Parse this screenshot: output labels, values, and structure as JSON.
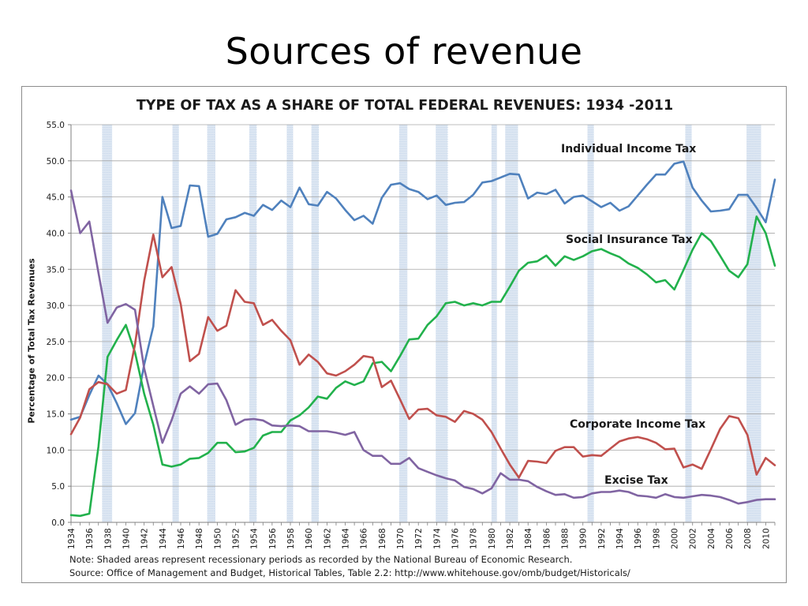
{
  "slide": {
    "title": "Sources of revenue"
  },
  "chart_notes": {
    "note": "Note:  Shaded areas represent recessionary periods as recorded by the National Bureau of Economic Research.",
    "source": "Source: Office of Management and Budget, Historical Tables, Table 2.2:  http://www.whitehouse.gov/omb/budget/Historicals/"
  },
  "chart_data": {
    "type": "line",
    "title": "TYPE OF TAX AS A SHARE OF TOTAL FEDERAL REVENUES: 1934 -2011",
    "xlabel": "",
    "ylabel": "Percentage of Total Tax Revenues",
    "ylim": [
      0,
      55
    ],
    "yticks": [
      "0.0",
      "5.0",
      "10.0",
      "15.0",
      "20.0",
      "25.0",
      "30.0",
      "35.0",
      "40.0",
      "45.0",
      "50.0",
      "55.0"
    ],
    "xlim": [
      1934,
      2011
    ],
    "xticks": [
      "1934",
      "1936",
      "1938",
      "1940",
      "1942",
      "1944",
      "1946",
      "1948",
      "1950",
      "1952",
      "1954",
      "1956",
      "1958",
      "1960",
      "1962",
      "1964",
      "1966",
      "1968",
      "1970",
      "1972",
      "1974",
      "1976",
      "1978",
      "1980",
      "1982",
      "1984",
      "1986",
      "1988",
      "1990",
      "1992",
      "1994",
      "1996",
      "1998",
      "2000",
      "2002",
      "2004",
      "2006",
      "2008",
      "2010"
    ],
    "grid": true,
    "recessions": [
      [
        1937.4,
        1938.5
      ],
      [
        1945.1,
        1945.8
      ],
      [
        1948.9,
        1949.8
      ],
      [
        1953.5,
        1954.3
      ],
      [
        1957.6,
        1958.3
      ],
      [
        1960.3,
        1961.1
      ],
      [
        1969.9,
        1970.8
      ],
      [
        1973.9,
        1975.2
      ],
      [
        1980.0,
        1980.6
      ],
      [
        1981.5,
        1982.9
      ],
      [
        1990.5,
        1991.2
      ],
      [
        2001.2,
        2001.9
      ],
      [
        2007.9,
        2009.5
      ]
    ],
    "series": [
      {
        "name": "Individual Income Tax",
        "color": "#4f81bd",
        "values": [
          14.2,
          14.6,
          17.6,
          20.3,
          19.1,
          16.5,
          13.6,
          15.1,
          21.8,
          27.1,
          45.0,
          40.7,
          41.0,
          46.6,
          46.5,
          39.5,
          39.9,
          41.9,
          42.2,
          42.8,
          42.4,
          43.9,
          43.2,
          44.5,
          43.6,
          46.3,
          44.0,
          43.8,
          45.7,
          44.8,
          43.2,
          41.8,
          42.4,
          41.3,
          44.9,
          46.7,
          46.9,
          46.1,
          45.7,
          44.7,
          45.2,
          43.9,
          44.2,
          44.3,
          45.3,
          47.0,
          47.2,
          47.7,
          48.2,
          48.1,
          44.8,
          45.6,
          45.4,
          46.0,
          44.1,
          45.0,
          45.2,
          44.4,
          43.6,
          44.2,
          43.1,
          43.7,
          45.2,
          46.7,
          48.1,
          48.1,
          49.6,
          49.9,
          46.3,
          44.5,
          43.0,
          43.1,
          43.3,
          45.3,
          45.3,
          43.5,
          41.5,
          47.4
        ]
      },
      {
        "name": "Social Insurance Tax",
        "color": "#22b14c",
        "values": [
          1.0,
          0.9,
          1.2,
          10.5,
          22.9,
          25.2,
          27.3,
          23.5,
          17.8,
          13.5,
          8.0,
          7.7,
          8.0,
          8.8,
          8.9,
          9.6,
          11.0,
          11.0,
          9.7,
          9.8,
          10.3,
          12.0,
          12.5,
          12.5,
          14.1,
          14.8,
          15.9,
          17.4,
          17.1,
          18.6,
          19.5,
          19.0,
          19.5,
          22.0,
          22.2,
          20.9,
          23.0,
          25.3,
          25.4,
          27.3,
          28.5,
          30.3,
          30.5,
          30.0,
          30.3,
          30.0,
          30.5,
          30.5,
          32.6,
          34.8,
          35.9,
          36.1,
          36.9,
          35.5,
          36.8,
          36.3,
          36.8,
          37.5,
          37.8,
          37.2,
          36.7,
          35.8,
          35.2,
          34.3,
          33.2,
          33.5,
          32.2,
          34.9,
          37.7,
          40.0,
          38.9,
          36.9,
          34.8,
          33.9,
          35.7,
          42.3,
          40.0,
          35.5
        ]
      },
      {
        "name": "Corporate Income Tax",
        "color": "#c0504d",
        "values": [
          12.2,
          14.5,
          18.4,
          19.4,
          19.1,
          17.8,
          18.3,
          24.6,
          33.4,
          39.8,
          33.9,
          35.3,
          30.2,
          22.3,
          23.3,
          28.4,
          26.5,
          27.2,
          32.1,
          30.5,
          30.3,
          27.3,
          28.0,
          26.5,
          25.2,
          21.8,
          23.2,
          22.2,
          20.6,
          20.3,
          20.9,
          21.8,
          23.0,
          22.8,
          18.7,
          19.6,
          17.0,
          14.3,
          15.6,
          15.7,
          14.8,
          14.6,
          13.9,
          15.4,
          15.0,
          14.2,
          12.5,
          10.2,
          8.0,
          6.2,
          8.5,
          8.4,
          8.2,
          9.9,
          10.4,
          10.4,
          9.1,
          9.3,
          9.2,
          10.2,
          11.2,
          11.6,
          11.8,
          11.5,
          11.0,
          10.1,
          10.2,
          7.6,
          8.0,
          7.4,
          10.1,
          12.9,
          14.7,
          14.4,
          12.1,
          6.6,
          8.9,
          7.9
        ]
      },
      {
        "name": "Excise Tax",
        "color": "#8064a2",
        "values": [
          45.9,
          40.0,
          41.6,
          34.5,
          27.6,
          29.7,
          30.2,
          29.4,
          21.3,
          16.1,
          11.0,
          14.1,
          17.8,
          18.8,
          17.8,
          19.1,
          19.2,
          16.9,
          13.5,
          14.2,
          14.3,
          14.1,
          13.4,
          13.3,
          13.4,
          13.3,
          12.6,
          12.6,
          12.6,
          12.4,
          12.1,
          12.5,
          10.0,
          9.2,
          9.2,
          8.1,
          8.1,
          8.9,
          7.5,
          7.0,
          6.5,
          6.1,
          5.8,
          4.9,
          4.6,
          4.0,
          4.7,
          6.8,
          5.9,
          5.9,
          5.7,
          4.9,
          4.3,
          3.8,
          3.9,
          3.4,
          3.5,
          4.0,
          4.2,
          4.2,
          4.4,
          4.2,
          3.7,
          3.6,
          3.4,
          3.9,
          3.5,
          3.4,
          3.6,
          3.8,
          3.7,
          3.5,
          3.1,
          2.6,
          2.8,
          3.1,
          3.2,
          3.2
        ]
      }
    ]
  }
}
